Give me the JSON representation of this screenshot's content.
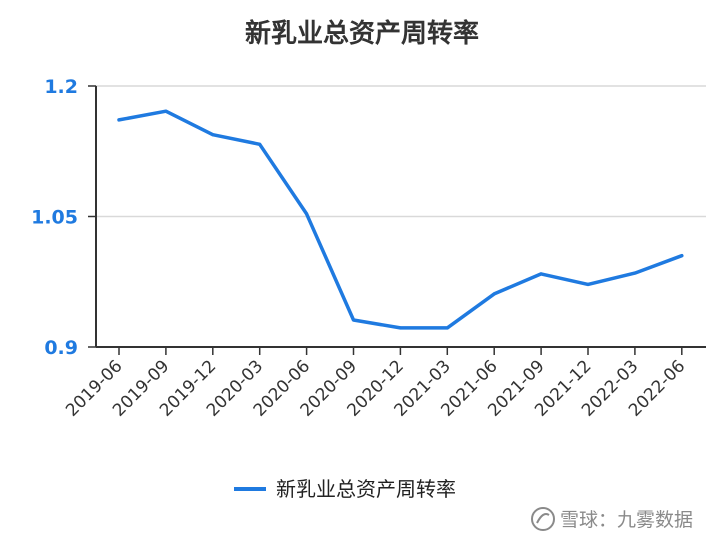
{
  "chart_data": {
    "type": "line",
    "title": "新乳业总资产周转率",
    "categories": [
      "2019-06",
      "2019-09",
      "2019-12",
      "2020-03",
      "2020-06",
      "2020-09",
      "2020-12",
      "2021-03",
      "2021-06",
      "2021-09",
      "2021-12",
      "2022-03",
      "2022-06"
    ],
    "series": [
      {
        "name": "新乳业总资产周转率",
        "color": "#1f7ae0",
        "values": [
          1.161,
          1.171,
          1.144,
          1.133,
          1.053,
          0.931,
          0.922,
          0.922,
          0.961,
          0.984,
          0.972,
          0.985,
          1.005
        ]
      }
    ],
    "yticks": [
      "1.2",
      "1.05",
      "0.9"
    ],
    "ylim": [
      0.9,
      1.2
    ],
    "grid": true,
    "legend": "bottom-center",
    "ytick_color": "#1f7ae0"
  },
  "watermark": {
    "text": "雪球：九雾数据",
    "icon": "snowball-logo-icon"
  }
}
